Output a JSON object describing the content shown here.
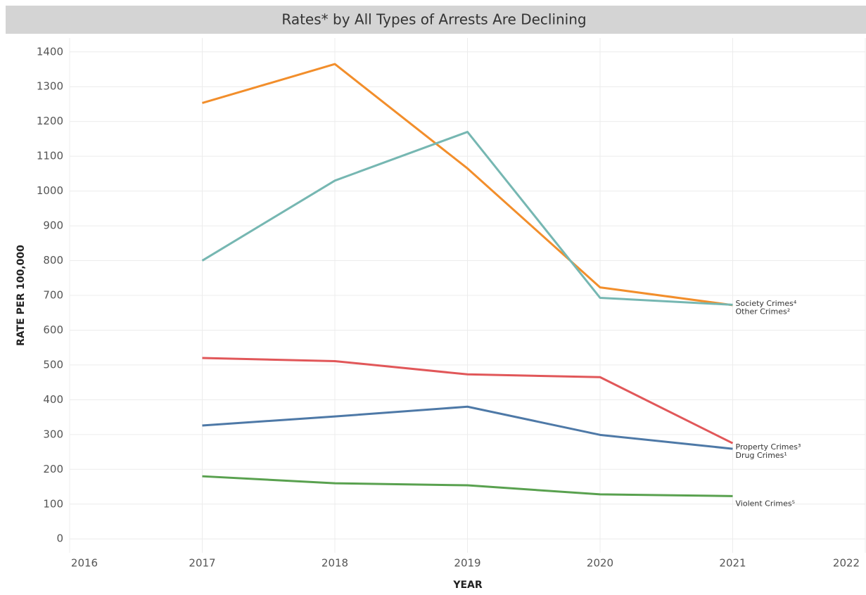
{
  "chart_data": {
    "type": "line",
    "title": "Rates* by All Types of Arrests Are Declining",
    "xlabel": "YEAR",
    "ylabel": "RATE PER 100,000",
    "x": [
      2017,
      2018,
      2019,
      2020,
      2021
    ],
    "series": [
      {
        "name": "Society Crimes⁴",
        "color": "#f28e2b",
        "values": [
          1253,
          1365,
          1065,
          723,
          672
        ]
      },
      {
        "name": "Other Crimes²",
        "color": "#76b7b2",
        "values": [
          800,
          1030,
          1170,
          693,
          673
        ]
      },
      {
        "name": "Property Crimes³",
        "color": "#e15759",
        "values": [
          520,
          511,
          473,
          465,
          275
        ]
      },
      {
        "name": "Drug Crimes¹",
        "color": "#4e79a7",
        "values": [
          326,
          352,
          380,
          299,
          259
        ]
      },
      {
        "name": "Violent Crimes⁵",
        "color": "#59a14f",
        "values": [
          180,
          160,
          154,
          128,
          123
        ]
      }
    ],
    "xlim": [
      2016,
      2022
    ],
    "xticks": [
      2016,
      2017,
      2018,
      2019,
      2020,
      2021,
      2022
    ],
    "ylim": [
      -40,
      1440
    ],
    "yticks": [
      0,
      100,
      200,
      300,
      400,
      500,
      600,
      700,
      800,
      900,
      1000,
      1100,
      1200,
      1300,
      1400
    ],
    "grid": true
  }
}
